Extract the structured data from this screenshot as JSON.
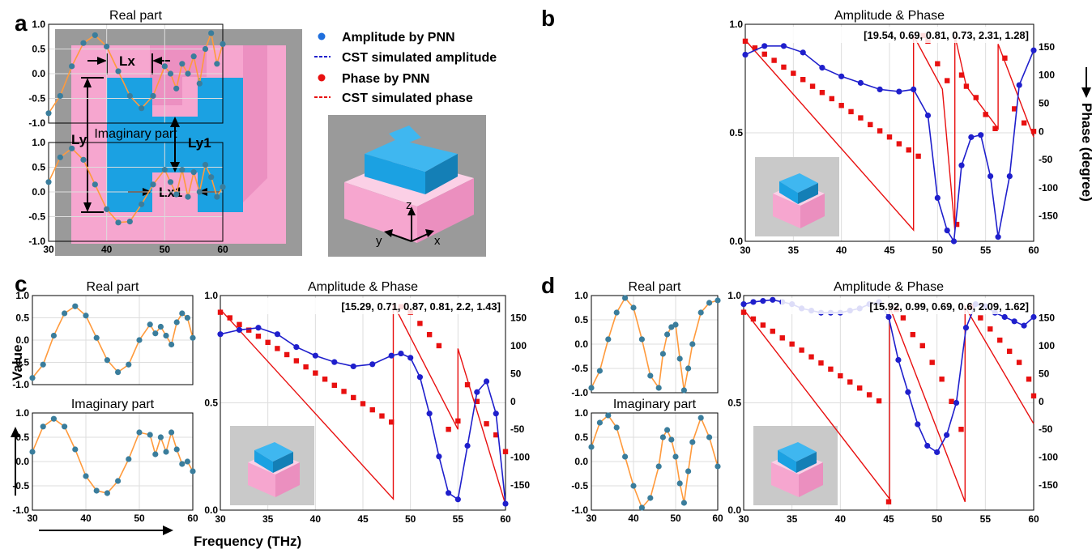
{
  "panel_letters": {
    "a": "a",
    "b": "b",
    "c": "c",
    "d": "d"
  },
  "schematic": {
    "lx": "Lx",
    "ly": "Ly",
    "ly1": "Ly1",
    "lx1": "Lx1",
    "axis_z": "z",
    "axis_y": "y",
    "axis_x": "x"
  },
  "legend": {
    "amp_pnn": "Amplitude by PNN",
    "amp_cst": "CST simulated amplitude",
    "phase_pnn": "Phase by PNN",
    "phase_cst": "CST simulated phase"
  },
  "side_labels": {
    "value": "Value",
    "frequency": "Frequency (THz)",
    "phase_axis": "Phase (degree)"
  },
  "colors": {
    "amplitude": "#1f1fcc",
    "phase": "#e81010",
    "pnn_points": "#3a7d9c",
    "cst_curve": "#ff9a3c",
    "pink": "#f6a6cf",
    "cyan": "#1ba1e2",
    "grey": "#9a9a9a"
  },
  "chart_data": [
    {
      "panel": "b",
      "small_charts": [
        {
          "title": "Real part",
          "type": "line",
          "xlim": [
            30,
            60
          ],
          "ylim": [
            -1.0,
            1.0
          ],
          "x": [
            30,
            32,
            34,
            36,
            38,
            40,
            42,
            44,
            46,
            48,
            50,
            51,
            52,
            53,
            54,
            55,
            56,
            57,
            58,
            59,
            60
          ],
          "y": [
            -0.8,
            -0.45,
            0.15,
            0.62,
            0.78,
            0.55,
            0.05,
            -0.45,
            -0.7,
            -0.45,
            0.15,
            0.0,
            -0.3,
            0.2,
            0.0,
            0.35,
            -0.2,
            0.5,
            0.82,
            0.2,
            0.6
          ]
        },
        {
          "title": "Imaginary part",
          "type": "line",
          "xlim": [
            30,
            60
          ],
          "ylim": [
            -1.0,
            1.0
          ],
          "x": [
            30,
            32,
            34,
            36,
            38,
            40,
            42,
            44,
            46,
            48,
            50,
            51,
            52,
            53,
            54,
            55,
            56,
            57,
            58,
            59,
            60
          ],
          "y": [
            0.2,
            0.7,
            0.88,
            0.65,
            0.15,
            -0.35,
            -0.62,
            -0.6,
            -0.25,
            0.15,
            0.45,
            0.2,
            -0.05,
            0.45,
            -0.1,
            0.4,
            0.0,
            0.55,
            0.3,
            -0.1,
            0.1
          ]
        }
      ],
      "main": {
        "title": "Amplitude & Phase",
        "annotation": "[19.54, 0.69, 0.81, 0.73, 2.31, 1.28]",
        "xlim": [
          30,
          60
        ],
        "ylim": [
          0.0,
          1.0
        ],
        "y2lim": [
          -195,
          190
        ],
        "amplitude": {
          "x": [
            30,
            32,
            34,
            36,
            38,
            40,
            42,
            44,
            46,
            47.5,
            49,
            50,
            51,
            51.7,
            52.5,
            53.5,
            54.5,
            55.5,
            56.3,
            57.5,
            58.5,
            60
          ],
          "y": [
            0.86,
            0.9,
            0.9,
            0.87,
            0.8,
            0.76,
            0.73,
            0.7,
            0.69,
            0.7,
            0.58,
            0.2,
            0.05,
            0.0,
            0.35,
            0.48,
            0.49,
            0.3,
            0.02,
            0.3,
            0.72,
            0.88
          ]
        },
        "phase_points": {
          "x": [
            30,
            31,
            32,
            33,
            34,
            35,
            36,
            37,
            38,
            39,
            40,
            41,
            42,
            43,
            44,
            45,
            46,
            47,
            48,
            48.5,
            49,
            50,
            51,
            52,
            52.5,
            53,
            54,
            55,
            56,
            57,
            58,
            59,
            60
          ],
          "y": [
            160,
            148,
            137,
            126,
            114,
            103,
            92,
            80,
            69,
            58,
            46,
            35,
            24,
            12,
            1,
            -10,
            -22,
            -33,
            -44,
            170,
            160,
            120,
            90,
            -165,
            100,
            80,
            60,
            30,
            5,
            130,
            40,
            15,
            0
          ]
        },
        "phase_curve": {
          "x": [
            30,
            47.5,
            47.5,
            50.5,
            51.8,
            51.8,
            53,
            56.3,
            56.3,
            60
          ],
          "y": [
            162,
            -175,
            170,
            75,
            -175,
            170,
            80,
            5,
            155,
            -10
          ]
        }
      }
    },
    {
      "panel": "c",
      "small_charts": [
        {
          "title": "Real part",
          "type": "line",
          "xlim": [
            30,
            60
          ],
          "ylim": [
            -1.0,
            1.0
          ],
          "x": [
            30,
            32,
            34,
            36,
            38,
            40,
            42,
            44,
            46,
            48,
            50,
            52,
            53,
            54,
            55,
            56,
            57,
            58,
            59,
            60
          ],
          "y": [
            -0.85,
            -0.55,
            0.1,
            0.6,
            0.76,
            0.55,
            0.05,
            -0.45,
            -0.72,
            -0.55,
            0.0,
            0.35,
            0.15,
            0.3,
            0.1,
            -0.1,
            0.4,
            0.6,
            0.5,
            0.05
          ]
        },
        {
          "title": "Imaginary part",
          "type": "line",
          "xlim": [
            30,
            60
          ],
          "ylim": [
            -1.0,
            1.0
          ],
          "x": [
            30,
            32,
            34,
            36,
            38,
            40,
            42,
            44,
            46,
            48,
            50,
            52,
            53,
            54,
            55,
            56,
            57,
            58,
            59,
            60
          ],
          "y": [
            0.2,
            0.72,
            0.88,
            0.72,
            0.25,
            -0.3,
            -0.6,
            -0.65,
            -0.4,
            0.05,
            0.6,
            0.55,
            0.15,
            0.5,
            0.2,
            0.6,
            0.25,
            -0.05,
            0.0,
            -0.2
          ]
        }
      ],
      "main": {
        "title": "Amplitude & Phase",
        "annotation": "[15.29, 0.71, 0.87, 0.81, 2.2, 1.43]",
        "xlim": [
          30,
          60
        ],
        "ylim": [
          0.0,
          1.0
        ],
        "y2lim": [
          -195,
          190
        ],
        "amplitude": {
          "x": [
            30,
            32,
            34,
            36,
            38,
            40,
            42,
            44,
            46,
            48,
            49,
            50,
            51,
            52,
            53,
            54,
            55,
            56,
            57,
            58,
            59,
            60
          ],
          "y": [
            0.82,
            0.84,
            0.85,
            0.82,
            0.76,
            0.72,
            0.69,
            0.67,
            0.68,
            0.72,
            0.73,
            0.71,
            0.62,
            0.45,
            0.25,
            0.08,
            0.05,
            0.3,
            0.55,
            0.6,
            0.45,
            0.03
          ]
        },
        "phase_points": {
          "x": [
            30,
            31,
            32,
            33,
            34,
            35,
            36,
            37,
            38,
            39,
            40,
            41,
            42,
            43,
            44,
            45,
            46,
            47,
            48,
            49,
            50,
            51,
            52,
            53,
            54,
            55,
            56,
            57,
            58,
            59,
            60
          ],
          "y": [
            160,
            150,
            138,
            128,
            117,
            106,
            95,
            84,
            73,
            62,
            51,
            40,
            29,
            18,
            7,
            -4,
            -15,
            -26,
            -37,
            170,
            160,
            140,
            120,
            100,
            -50,
            -35,
            30,
            0,
            -40,
            -60,
            -90
          ]
        },
        "phase_curve": {
          "x": [
            30,
            48.2,
            48.2,
            55,
            55,
            60
          ],
          "y": [
            165,
            -175,
            175,
            -50,
            95,
            -185
          ]
        }
      }
    },
    {
      "panel": "d",
      "small_charts": [
        {
          "title": "Real part",
          "type": "line",
          "xlim": [
            30,
            60
          ],
          "ylim": [
            -1.0,
            1.0
          ],
          "x": [
            30,
            32,
            34,
            36,
            38,
            40,
            42,
            44,
            46,
            47,
            48,
            49,
            50,
            51,
            52,
            53,
            54,
            56,
            58,
            60
          ],
          "y": [
            -0.9,
            -0.55,
            0.1,
            0.65,
            0.95,
            0.75,
            0.1,
            -0.65,
            -0.9,
            -0.2,
            0.2,
            0.35,
            0.4,
            -0.3,
            -0.95,
            -0.5,
            0.0,
            0.65,
            0.85,
            0.9
          ]
        },
        {
          "title": "Imaginary part",
          "type": "line",
          "xlim": [
            30,
            60
          ],
          "ylim": [
            -1.0,
            1.0
          ],
          "x": [
            30,
            32,
            34,
            36,
            38,
            40,
            42,
            44,
            46,
            47,
            48,
            49,
            50,
            51,
            52,
            53,
            54,
            56,
            58,
            60
          ],
          "y": [
            0.3,
            0.8,
            0.95,
            0.7,
            0.1,
            -0.5,
            -0.95,
            -0.75,
            -0.1,
            0.5,
            0.65,
            0.45,
            0.1,
            -0.45,
            -0.85,
            -0.2,
            0.4,
            0.9,
            0.5,
            -0.1
          ]
        }
      ],
      "main": {
        "title": "Amplitude & Phase",
        "annotation": "[15.92, 0.99, 0.69, 0.6, 2.09, 1.62]",
        "xlim": [
          30,
          60
        ],
        "ylim": [
          0.0,
          1.0
        ],
        "y2lim": [
          -195,
          190
        ],
        "amplitude": {
          "x": [
            30,
            31,
            32,
            33,
            34,
            35,
            36,
            37,
            38,
            39,
            40,
            41,
            42,
            43,
            44,
            45,
            46,
            47,
            48,
            49,
            50,
            51,
            52,
            53,
            54,
            55,
            56,
            57,
            58,
            59,
            60
          ],
          "y": [
            0.96,
            0.97,
            0.975,
            0.98,
            0.97,
            0.96,
            0.94,
            0.93,
            0.92,
            0.92,
            0.92,
            0.93,
            0.94,
            0.96,
            0.97,
            0.9,
            0.7,
            0.55,
            0.4,
            0.3,
            0.27,
            0.35,
            0.5,
            0.85,
            0.96,
            0.95,
            0.92,
            0.9,
            0.88,
            0.86,
            0.9
          ]
        },
        "phase_points": {
          "x": [
            30,
            31,
            32,
            33,
            34,
            35,
            36,
            37,
            38,
            39,
            40,
            41,
            42,
            43,
            44,
            45,
            45.8,
            46.5,
            47.5,
            48.5,
            49.5,
            50.5,
            51.5,
            52.5,
            53.5,
            54.5,
            55.5,
            56.5,
            57.5,
            58.5,
            59.5,
            60
          ],
          "y": [
            160,
            148,
            137,
            126,
            114,
            103,
            92,
            80,
            69,
            58,
            46,
            35,
            24,
            12,
            1,
            -180,
            165,
            150,
            120,
            100,
            70,
            40,
            0,
            -50,
            170,
            150,
            130,
            110,
            90,
            70,
            40,
            10
          ]
        },
        "phase_curve": {
          "x": [
            30,
            45.1,
            45.1,
            52.9,
            52.9,
            60
          ],
          "y": [
            165,
            -175,
            170,
            -180,
            170,
            -40
          ]
        }
      }
    }
  ]
}
